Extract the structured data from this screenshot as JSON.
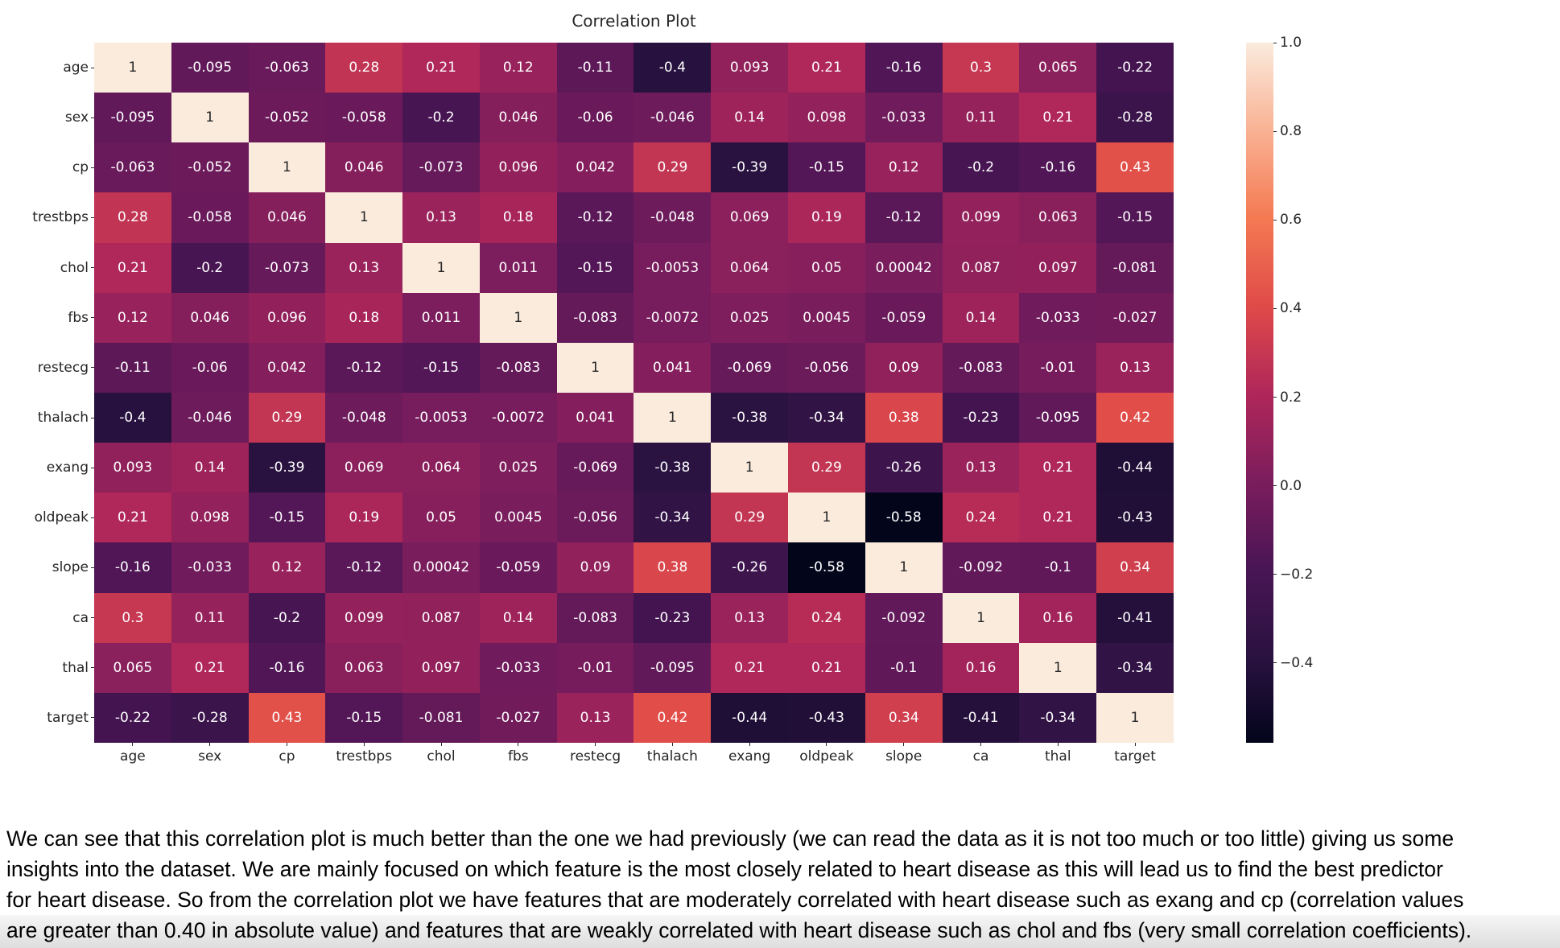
{
  "plot": {
    "title": "Correlation Plot"
  },
  "chart_data": {
    "type": "heatmap",
    "title": "Correlation Plot",
    "variables": [
      "age",
      "sex",
      "cp",
      "trestbps",
      "chol",
      "fbs",
      "restecg",
      "thalach",
      "exang",
      "oldpeak",
      "slope",
      "ca",
      "thal",
      "target"
    ],
    "matrix": [
      [
        "1",
        "-0.095",
        "-0.063",
        "0.28",
        "0.21",
        "0.12",
        "-0.11",
        "-0.4",
        "0.093",
        "0.21",
        "-0.16",
        "0.3",
        "0.065",
        "-0.22"
      ],
      [
        "-0.095",
        "1",
        "-0.052",
        "-0.058",
        "-0.2",
        "0.046",
        "-0.06",
        "-0.046",
        "0.14",
        "0.098",
        "-0.033",
        "0.11",
        "0.21",
        "-0.28"
      ],
      [
        "-0.063",
        "-0.052",
        "1",
        "0.046",
        "-0.073",
        "0.096",
        "0.042",
        "0.29",
        "-0.39",
        "-0.15",
        "0.12",
        "-0.2",
        "-0.16",
        "0.43"
      ],
      [
        "0.28",
        "-0.058",
        "0.046",
        "1",
        "0.13",
        "0.18",
        "-0.12",
        "-0.048",
        "0.069",
        "0.19",
        "-0.12",
        "0.099",
        "0.063",
        "-0.15"
      ],
      [
        "0.21",
        "-0.2",
        "-0.073",
        "0.13",
        "1",
        "0.011",
        "-0.15",
        "-0.0053",
        "0.064",
        "0.05",
        "0.00042",
        "0.087",
        "0.097",
        "-0.081"
      ],
      [
        "0.12",
        "0.046",
        "0.096",
        "0.18",
        "0.011",
        "1",
        "-0.083",
        "-0.0072",
        "0.025",
        "0.0045",
        "-0.059",
        "0.14",
        "-0.033",
        "-0.027"
      ],
      [
        "-0.11",
        "-0.06",
        "0.042",
        "-0.12",
        "-0.15",
        "-0.083",
        "1",
        "0.041",
        "-0.069",
        "-0.056",
        "0.09",
        "-0.083",
        "-0.01",
        "0.13"
      ],
      [
        "-0.4",
        "-0.046",
        "0.29",
        "-0.048",
        "-0.0053",
        "-0.0072",
        "0.041",
        "1",
        "-0.38",
        "-0.34",
        "0.38",
        "-0.23",
        "-0.095",
        "0.42"
      ],
      [
        "0.093",
        "0.14",
        "-0.39",
        "0.069",
        "0.064",
        "0.025",
        "-0.069",
        "-0.38",
        "1",
        "0.29",
        "-0.26",
        "0.13",
        "0.21",
        "-0.44"
      ],
      [
        "0.21",
        "0.098",
        "-0.15",
        "0.19",
        "0.05",
        "0.0045",
        "-0.056",
        "-0.34",
        "0.29",
        "1",
        "-0.58",
        "0.24",
        "0.21",
        "-0.43"
      ],
      [
        "-0.16",
        "-0.033",
        "0.12",
        "-0.12",
        "0.00042",
        "-0.059",
        "0.09",
        "0.38",
        "-0.26",
        "-0.58",
        "1",
        "-0.092",
        "-0.1",
        "0.34"
      ],
      [
        "0.3",
        "0.11",
        "-0.2",
        "0.099",
        "0.087",
        "0.14",
        "-0.083",
        "-0.23",
        "0.13",
        "0.24",
        "-0.092",
        "1",
        "0.16",
        "-0.41"
      ],
      [
        "0.065",
        "0.21",
        "-0.16",
        "0.063",
        "0.097",
        "-0.033",
        "-0.01",
        "-0.095",
        "0.21",
        "0.21",
        "-0.1",
        "0.16",
        "1",
        "-0.34"
      ],
      [
        "-0.22",
        "-0.28",
        "0.43",
        "-0.15",
        "-0.081",
        "-0.027",
        "0.13",
        "0.42",
        "-0.44",
        "-0.43",
        "0.34",
        "-0.41",
        "-0.34",
        "1"
      ]
    ],
    "vmin": -0.58,
    "vmax": 1.0,
    "colormap": "rocket",
    "colormap_anchors": [
      "#03051B",
      "#2A1241",
      "#4A1555",
      "#7C1D5D",
      "#B02759",
      "#E04B49",
      "#F47A52",
      "#F9B294",
      "#FAEBDD"
    ],
    "annotation_colors": {
      "light": "#ffffff",
      "dark": "#262626"
    },
    "colorbar_ticks": [
      {
        "label": "1.0",
        "value": 1.0
      },
      {
        "label": "0.8",
        "value": 0.8
      },
      {
        "label": "0.6",
        "value": 0.6
      },
      {
        "label": "0.4",
        "value": 0.4
      },
      {
        "label": "0.2",
        "value": 0.2
      },
      {
        "label": "0.0",
        "value": 0.0
      },
      {
        "label": "−0.2",
        "value": -0.2
      },
      {
        "label": "−0.4",
        "value": -0.4
      }
    ],
    "legend_position": "right",
    "grid": false
  },
  "caption": {
    "lines": [
      "We can see that this correlation plot is much better than the one we had previously (we can read the data as it is not too much or too little) giving us some",
      "insights into the dataset. We are mainly focused on which feature is the most closely related to heart disease as this will lead us to find the best predictor",
      "for heart disease. So from the correlation plot we have features that are moderately correlated with heart disease such as exang and cp (correlation values",
      "are greater than 0.40 in absolute value) and features that are weakly correlated with heart disease such as chol and fbs (very small correlation coefficients)."
    ]
  }
}
